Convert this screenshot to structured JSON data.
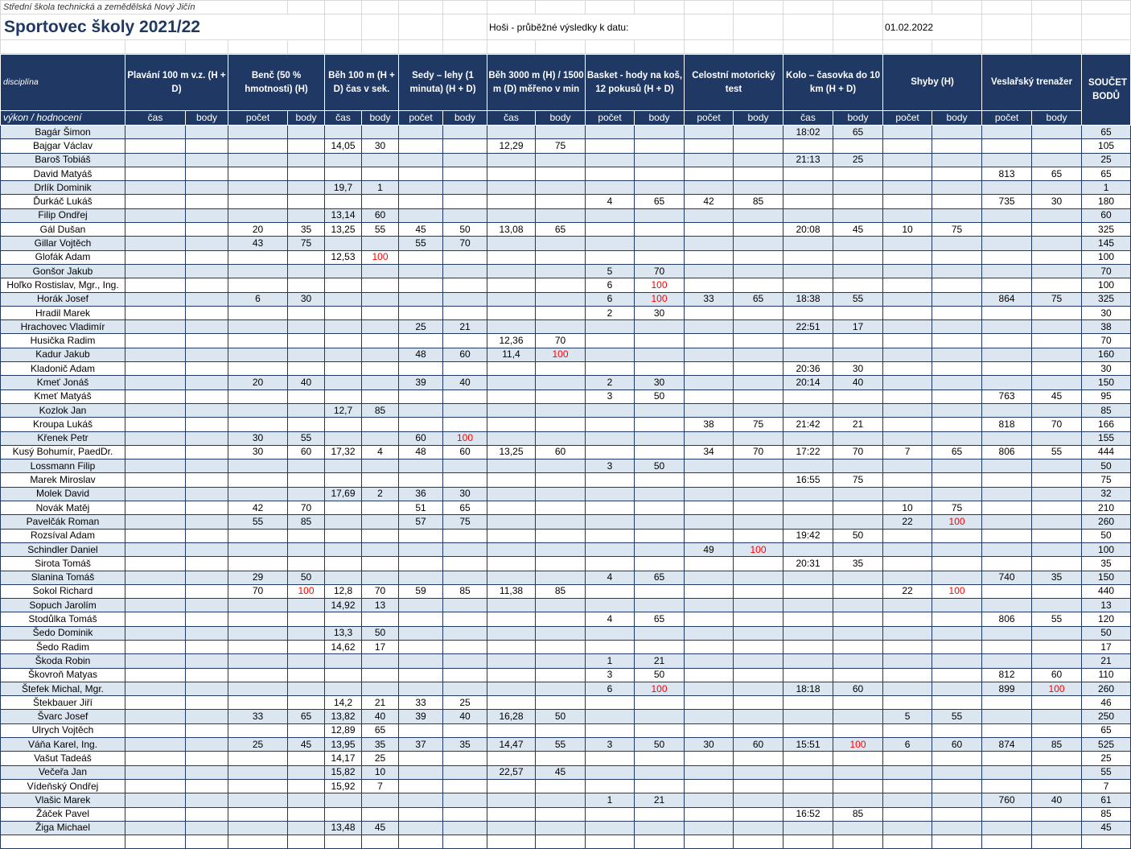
{
  "sheet": {
    "school": "Střední škola technická a zemědělská Nový Jičín",
    "title": "Sportovec školy 2021/22",
    "subtitle": "Hoši - průběžné výsledky k datu:",
    "date": "01.02.2022"
  },
  "table": {
    "corner_top": "disciplína",
    "corner_bottom": "výkon / hodnocení",
    "total_label": "SOUČET BODŮ",
    "highlight": {
      "value": 100,
      "color": "#ff0000"
    },
    "groups": [
      {
        "label": "Plavání 100 m v.z. (H + D)",
        "subs": [
          "čas",
          "body"
        ]
      },
      {
        "label": "Benč (50 % hmotnosti) (H)",
        "subs": [
          "počet",
          "body"
        ]
      },
      {
        "label": "Běh 100 m (H + D) čas v sek.",
        "subs": [
          "čas",
          "body"
        ]
      },
      {
        "label": "Sedy – lehy (1 minuta) (H + D)",
        "subs": [
          "počet",
          "body"
        ]
      },
      {
        "label": "Běh 3000 m (H) / 1500 m (D) měřeno v min",
        "subs": [
          "čas",
          "body"
        ]
      },
      {
        "label": "Basket - hody na koš, 12 pokusů (H + D)",
        "subs": [
          "počet",
          "body"
        ]
      },
      {
        "label": "Celostní motorický test",
        "subs": [
          "počet",
          "body"
        ]
      },
      {
        "label": "Kolo – časovka do 10 km (H + D)",
        "subs": [
          "čas",
          "body"
        ]
      },
      {
        "label": "Shyby (H)",
        "subs": [
          "počet",
          "body"
        ]
      },
      {
        "label": "Veslařský trenažer",
        "subs": [
          "počet",
          "body"
        ]
      }
    ],
    "rows": [
      [
        "Bagár Šimon",
        null,
        null,
        null,
        null,
        null,
        null,
        null,
        null,
        null,
        null,
        null,
        null,
        null,
        null,
        "18:02",
        65,
        null,
        null,
        null,
        null,
        65
      ],
      [
        "Bajgar Václav",
        null,
        null,
        null,
        null,
        "14,05",
        30,
        null,
        null,
        "12,29",
        75,
        null,
        null,
        null,
        null,
        null,
        null,
        null,
        null,
        null,
        null,
        105
      ],
      [
        "Baroš Tobiáš",
        null,
        null,
        null,
        null,
        null,
        null,
        null,
        null,
        null,
        null,
        null,
        null,
        null,
        null,
        "21:13",
        25,
        null,
        null,
        null,
        null,
        25
      ],
      [
        "David Matyáš",
        null,
        null,
        null,
        null,
        null,
        null,
        null,
        null,
        null,
        null,
        null,
        null,
        null,
        null,
        null,
        null,
        null,
        null,
        813,
        65,
        65
      ],
      [
        "Drlík Dominik",
        null,
        null,
        null,
        null,
        "19,7",
        1,
        null,
        null,
        null,
        null,
        null,
        null,
        null,
        null,
        null,
        null,
        null,
        null,
        null,
        null,
        1
      ],
      [
        "Ďurkáč Lukáš",
        null,
        null,
        null,
        null,
        null,
        null,
        null,
        null,
        null,
        null,
        4,
        65,
        42,
        85,
        null,
        null,
        null,
        null,
        735,
        30,
        180
      ],
      [
        "Filip Ondřej",
        null,
        null,
        null,
        null,
        "13,14",
        60,
        null,
        null,
        null,
        null,
        null,
        null,
        null,
        null,
        null,
        null,
        null,
        null,
        null,
        null,
        60
      ],
      [
        "Gál Dušan",
        null,
        null,
        20,
        35,
        "13,25",
        55,
        45,
        50,
        "13,08",
        65,
        null,
        null,
        null,
        null,
        "20:08",
        45,
        10,
        75,
        null,
        null,
        325
      ],
      [
        "Gillar Vojtěch",
        null,
        null,
        43,
        75,
        null,
        null,
        55,
        70,
        null,
        null,
        null,
        null,
        null,
        null,
        null,
        null,
        null,
        null,
        null,
        null,
        145
      ],
      [
        "Glofák Adam",
        null,
        null,
        null,
        null,
        "12,53",
        100,
        null,
        null,
        null,
        null,
        null,
        null,
        null,
        null,
        null,
        null,
        null,
        null,
        null,
        null,
        100
      ],
      [
        "Gonšor Jakub",
        null,
        null,
        null,
        null,
        null,
        null,
        null,
        null,
        null,
        null,
        5,
        70,
        null,
        null,
        null,
        null,
        null,
        null,
        null,
        null,
        70
      ],
      [
        "Hoľko Rostislav, Mgr., Ing.",
        null,
        null,
        null,
        null,
        null,
        null,
        null,
        null,
        null,
        null,
        6,
        100,
        null,
        null,
        null,
        null,
        null,
        null,
        null,
        null,
        100
      ],
      [
        "Horák Josef",
        null,
        null,
        6,
        30,
        null,
        null,
        null,
        null,
        null,
        null,
        6,
        100,
        33,
        65,
        "18:38",
        55,
        null,
        null,
        864,
        75,
        325
      ],
      [
        "Hradil Marek",
        null,
        null,
        null,
        null,
        null,
        null,
        null,
        null,
        null,
        null,
        2,
        30,
        null,
        null,
        null,
        null,
        null,
        null,
        null,
        null,
        30
      ],
      [
        "Hrachovec Vladimír",
        null,
        null,
        null,
        null,
        null,
        null,
        25,
        21,
        null,
        null,
        null,
        null,
        null,
        null,
        "22:51",
        17,
        null,
        null,
        null,
        null,
        38
      ],
      [
        "Husička Radim",
        null,
        null,
        null,
        null,
        null,
        null,
        null,
        null,
        "12,36",
        70,
        null,
        null,
        null,
        null,
        null,
        null,
        null,
        null,
        null,
        null,
        70
      ],
      [
        "Kadur Jakub",
        null,
        null,
        null,
        null,
        null,
        null,
        48,
        60,
        "11,4",
        100,
        null,
        null,
        null,
        null,
        null,
        null,
        null,
        null,
        null,
        null,
        160
      ],
      [
        "Kladonič Adam",
        null,
        null,
        null,
        null,
        null,
        null,
        null,
        null,
        null,
        null,
        null,
        null,
        null,
        null,
        "20:36",
        30,
        null,
        null,
        null,
        null,
        30
      ],
      [
        "Kmeť Jonáš",
        null,
        null,
        20,
        40,
        null,
        null,
        39,
        40,
        null,
        null,
        2,
        30,
        null,
        null,
        "20:14",
        40,
        null,
        null,
        null,
        null,
        150
      ],
      [
        "Kmeť Matyáš",
        null,
        null,
        null,
        null,
        null,
        null,
        null,
        null,
        null,
        null,
        3,
        50,
        null,
        null,
        null,
        null,
        null,
        null,
        763,
        45,
        95
      ],
      [
        "Kozlok Jan",
        null,
        null,
        null,
        null,
        "12,7",
        85,
        null,
        null,
        null,
        null,
        null,
        null,
        null,
        null,
        null,
        null,
        null,
        null,
        null,
        null,
        85
      ],
      [
        "Kroupa Lukáš",
        null,
        null,
        null,
        null,
        null,
        null,
        null,
        null,
        null,
        null,
        null,
        null,
        38,
        75,
        "21:42",
        21,
        null,
        null,
        818,
        70,
        166
      ],
      [
        "Křenek Petr",
        null,
        null,
        30,
        55,
        null,
        null,
        60,
        100,
        null,
        null,
        null,
        null,
        null,
        null,
        null,
        null,
        null,
        null,
        null,
        null,
        155
      ],
      [
        "Kusý Bohumír, PaedDr.",
        null,
        null,
        30,
        60,
        "17,32",
        4,
        48,
        60,
        "13,25",
        60,
        null,
        null,
        34,
        70,
        "17:22",
        70,
        7,
        65,
        806,
        55,
        444
      ],
      [
        "Lossmann Filip",
        null,
        null,
        null,
        null,
        null,
        null,
        null,
        null,
        null,
        null,
        3,
        50,
        null,
        null,
        null,
        null,
        null,
        null,
        null,
        null,
        50
      ],
      [
        "Marek Miroslav",
        null,
        null,
        null,
        null,
        null,
        null,
        null,
        null,
        null,
        null,
        null,
        null,
        null,
        null,
        "16:55",
        75,
        null,
        null,
        null,
        null,
        75
      ],
      [
        "Molek David",
        null,
        null,
        null,
        null,
        "17,69",
        2,
        36,
        30,
        null,
        null,
        null,
        null,
        null,
        null,
        null,
        null,
        null,
        null,
        null,
        null,
        32
      ],
      [
        "Novák Matěj",
        null,
        null,
        42,
        70,
        null,
        null,
        51,
        65,
        null,
        null,
        null,
        null,
        null,
        null,
        null,
        null,
        10,
        75,
        null,
        null,
        210
      ],
      [
        "Pavelčák Roman",
        null,
        null,
        55,
        85,
        null,
        null,
        57,
        75,
        null,
        null,
        null,
        null,
        null,
        null,
        null,
        null,
        22,
        100,
        null,
        null,
        260
      ],
      [
        "Rozsíval Adam",
        null,
        null,
        null,
        null,
        null,
        null,
        null,
        null,
        null,
        null,
        null,
        null,
        null,
        null,
        "19:42",
        50,
        null,
        null,
        null,
        null,
        50
      ],
      [
        "Schindler Daniel",
        null,
        null,
        null,
        null,
        null,
        null,
        null,
        null,
        null,
        null,
        null,
        null,
        49,
        100,
        null,
        null,
        null,
        null,
        null,
        null,
        100
      ],
      [
        "Sirota Tomáš",
        null,
        null,
        null,
        null,
        null,
        null,
        null,
        null,
        null,
        null,
        null,
        null,
        null,
        null,
        "20:31",
        35,
        null,
        null,
        null,
        null,
        35
      ],
      [
        "Slanina Tomáš",
        null,
        null,
        29,
        50,
        null,
        null,
        null,
        null,
        null,
        null,
        4,
        65,
        null,
        null,
        null,
        null,
        null,
        null,
        740,
        35,
        150
      ],
      [
        "Sokol Richard",
        null,
        null,
        70,
        100,
        "12,8",
        70,
        59,
        85,
        "11,38",
        85,
        null,
        null,
        null,
        null,
        null,
        null,
        22,
        100,
        null,
        null,
        440
      ],
      [
        "Sopuch Jarolím",
        null,
        null,
        null,
        null,
        "14,92",
        13,
        null,
        null,
        null,
        null,
        null,
        null,
        null,
        null,
        null,
        null,
        null,
        null,
        null,
        null,
        13
      ],
      [
        "Stodůlka Tomáš",
        null,
        null,
        null,
        null,
        null,
        null,
        null,
        null,
        null,
        null,
        4,
        65,
        null,
        null,
        null,
        null,
        null,
        null,
        806,
        55,
        120
      ],
      [
        "Šedo Dominik",
        null,
        null,
        null,
        null,
        "13,3",
        50,
        null,
        null,
        null,
        null,
        null,
        null,
        null,
        null,
        null,
        null,
        null,
        null,
        null,
        null,
        50
      ],
      [
        "Šedo Radim",
        null,
        null,
        null,
        null,
        "14,62",
        17,
        null,
        null,
        null,
        null,
        null,
        null,
        null,
        null,
        null,
        null,
        null,
        null,
        null,
        null,
        17
      ],
      [
        "Škoda Robin",
        null,
        null,
        null,
        null,
        null,
        null,
        null,
        null,
        null,
        null,
        1,
        21,
        null,
        null,
        null,
        null,
        null,
        null,
        null,
        null,
        21
      ],
      [
        "Škovroň Matyas",
        null,
        null,
        null,
        null,
        null,
        null,
        null,
        null,
        null,
        null,
        3,
        50,
        null,
        null,
        null,
        null,
        null,
        null,
        812,
        60,
        110
      ],
      [
        "Štefek Michal, Mgr.",
        null,
        null,
        null,
        null,
        null,
        null,
        null,
        null,
        null,
        null,
        6,
        100,
        null,
        null,
        "18:18",
        60,
        null,
        null,
        899,
        100,
        260
      ],
      [
        "Štekbauer Jiří",
        null,
        null,
        null,
        null,
        "14,2",
        21,
        33,
        25,
        null,
        null,
        null,
        null,
        null,
        null,
        null,
        null,
        null,
        null,
        null,
        null,
        46
      ],
      [
        "Švarc Josef",
        null,
        null,
        33,
        65,
        "13,82",
        40,
        39,
        40,
        "16,28",
        50,
        null,
        null,
        null,
        null,
        null,
        null,
        5,
        55,
        null,
        null,
        250
      ],
      [
        "Ulrych Vojtěch",
        null,
        null,
        null,
        null,
        "12,89",
        65,
        null,
        null,
        null,
        null,
        null,
        null,
        null,
        null,
        null,
        null,
        null,
        null,
        null,
        null,
        65
      ],
      [
        "Váňa Karel, Ing.",
        null,
        null,
        25,
        45,
        "13,95",
        35,
        37,
        35,
        "14,47",
        55,
        3,
        50,
        30,
        60,
        "15:51",
        100,
        6,
        60,
        874,
        85,
        525
      ],
      [
        "Vašut Tadeáš",
        null,
        null,
        null,
        null,
        "14,17",
        25,
        null,
        null,
        null,
        null,
        null,
        null,
        null,
        null,
        null,
        null,
        null,
        null,
        null,
        null,
        25
      ],
      [
        "Večeřa Jan",
        null,
        null,
        null,
        null,
        "15,82",
        10,
        null,
        null,
        "22,57",
        45,
        null,
        null,
        null,
        null,
        null,
        null,
        null,
        null,
        null,
        null,
        55
      ],
      [
        "Vídeňský Ondřej",
        null,
        null,
        null,
        null,
        "15,92",
        7,
        null,
        null,
        null,
        null,
        null,
        null,
        null,
        null,
        null,
        null,
        null,
        null,
        null,
        null,
        7
      ],
      [
        "Vlašic Marek",
        null,
        null,
        null,
        null,
        null,
        null,
        null,
        null,
        null,
        null,
        1,
        21,
        null,
        null,
        null,
        null,
        null,
        null,
        760,
        40,
        61
      ],
      [
        "Žáček Pavel",
        null,
        null,
        null,
        null,
        null,
        null,
        null,
        null,
        null,
        null,
        null,
        null,
        null,
        null,
        "16:52",
        85,
        null,
        null,
        null,
        null,
        85
      ],
      [
        "Žiga Michael",
        null,
        null,
        null,
        null,
        "13,48",
        45,
        null,
        null,
        null,
        null,
        null,
        null,
        null,
        null,
        null,
        null,
        null,
        null,
        null,
        null,
        45
      ]
    ]
  }
}
